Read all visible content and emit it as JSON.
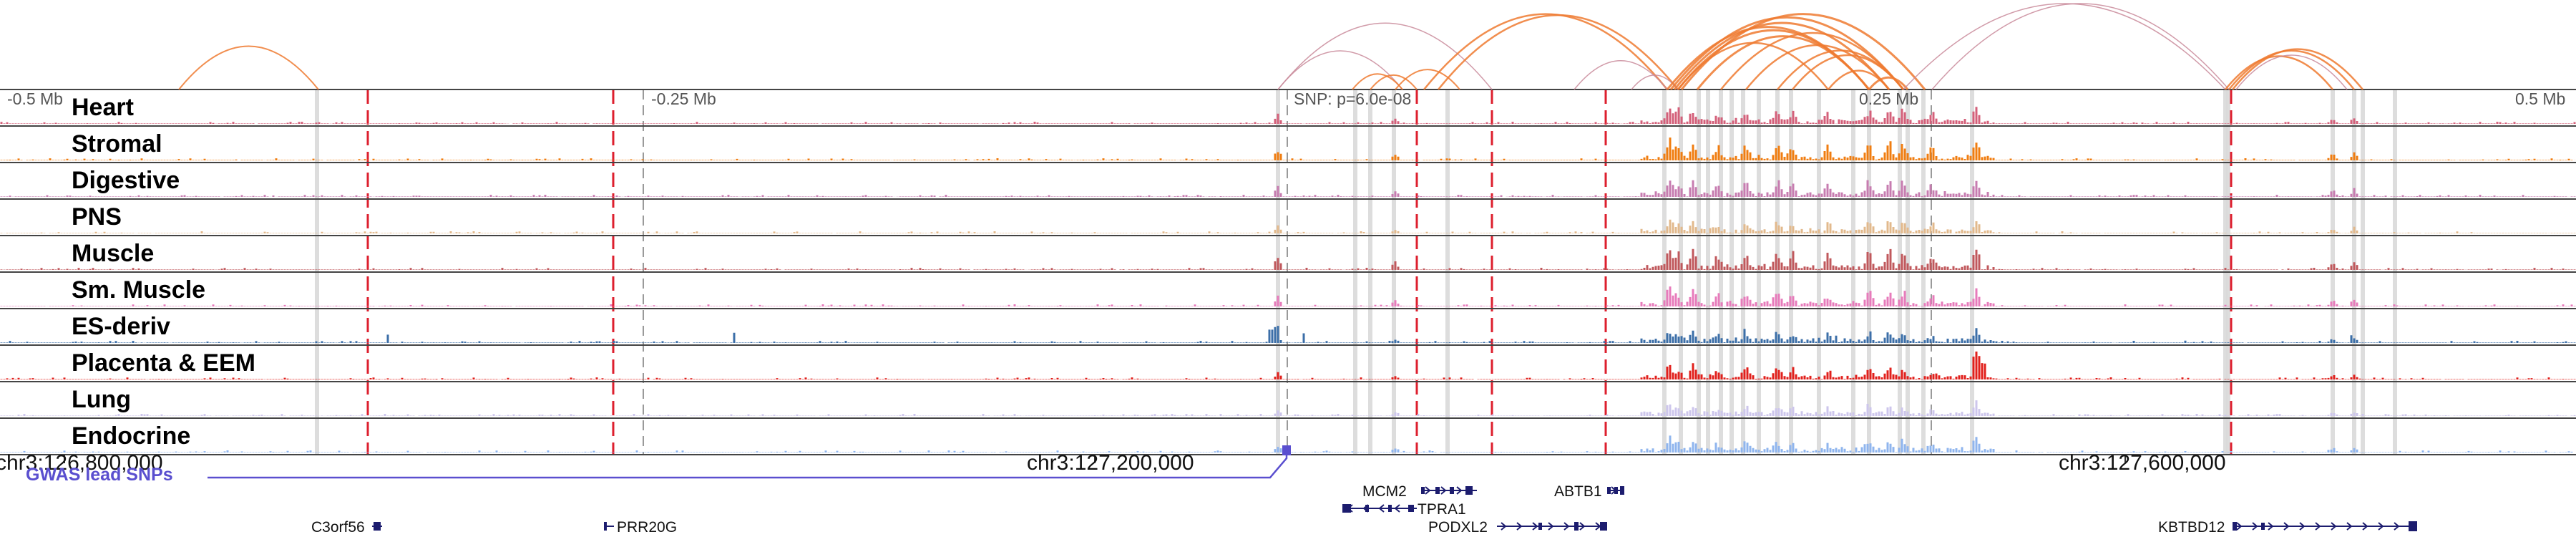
{
  "axis": {
    "left_label": "-0.5 Mb",
    "left_mid_label": "-0.25 Mb",
    "snp_label": "SNP: p=6.0e-08",
    "right_mid_label": "0.25 Mb",
    "right_label": "0.5 Mb"
  },
  "tracks": [
    {
      "name": "Heart",
      "color": "#d4607a"
    },
    {
      "name": "Stromal",
      "color": "#f07d10"
    },
    {
      "name": "Digestive",
      "color": "#c77cb0"
    },
    {
      "name": "PNS",
      "color": "#e2b98c"
    },
    {
      "name": "Muscle",
      "color": "#c0585c"
    },
    {
      "name": "Sm. Muscle",
      "color": "#e77bbb"
    },
    {
      "name": "ES-deriv",
      "color": "#3c6fa8"
    },
    {
      "name": "Placenta & EEM",
      "color": "#e1201c"
    },
    {
      "name": "Lung",
      "color": "#cdc6ec"
    },
    {
      "name": "Endocrine",
      "color": "#8fb5ee"
    }
  ],
  "coords": {
    "left": "chr3:126,800,000",
    "middle": "chr3:127,200,000",
    "right": "chr3:127,600,000"
  },
  "gwas": {
    "label": "GWAS lead SNPs"
  },
  "genes": [
    {
      "name": "C3orf56"
    },
    {
      "name": "PRR20G"
    },
    {
      "name": "MCM2"
    },
    {
      "name": "TPRA1"
    },
    {
      "name": "ABTB1"
    },
    {
      "name": "PODXL2"
    },
    {
      "name": "KBTBD12"
    }
  ],
  "colors": {
    "arc_orange": "#ee7a30",
    "arc_pink": "#c98a9a",
    "dashed_red": "#dd1f2e",
    "gwas_line": "#5a4fcf",
    "gene_navy": "#1c1c6e",
    "highlight": "#d9d9d9"
  }
}
